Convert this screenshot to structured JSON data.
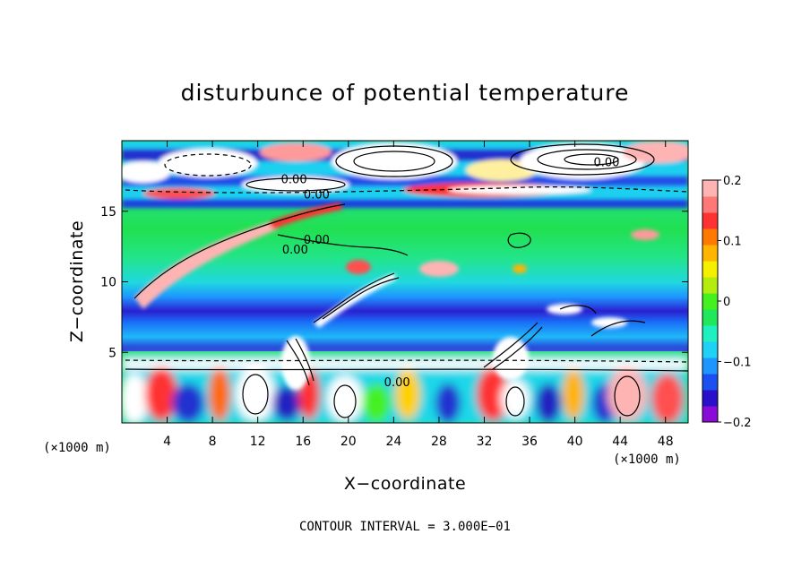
{
  "chart_data": {
    "type": "heatmap",
    "title": "disturbunce of potential temperature",
    "xlabel": "X−coordinate",
    "ylabel": "Z−coordinate",
    "xlim": [
      0,
      50
    ],
    "ylim": [
      0,
      20
    ],
    "xticks": [
      4,
      8,
      12,
      16,
      20,
      24,
      28,
      32,
      36,
      40,
      44,
      48
    ],
    "yticks": [
      5,
      10,
      15
    ],
    "x_unit": "(×1000 m)",
    "x_unit_right": "(×1000 m)",
    "colorbar": {
      "range": [
        -0.2,
        0.2
      ],
      "tick_values": [
        0.2,
        0.1,
        0,
        -0.1,
        -0.2
      ],
      "tick_labels": [
        "0.2",
        "0.1",
        "0",
        "−0.1",
        "−0.2"
      ],
      "colors": [
        "#8a0bd8",
        "#2a10c8",
        "#1a50f0",
        "#1e96ff",
        "#1fd2f5",
        "#20f0c0",
        "#21e85a",
        "#45f020",
        "#b4ec10",
        "#f5f000",
        "#ffb400",
        "#ff7800",
        "#ff3232",
        "#ff7878",
        "#ffb4b4"
      ]
    },
    "footer": "CONTOUR INTERVAL = 3.000E−01",
    "contour_labels": [
      {
        "text": "0.00",
        "x": 15.2,
        "z": 17.0
      },
      {
        "text": "0.00",
        "x": 17.2,
        "z": 15.9
      },
      {
        "text": "0.00",
        "x": 17.2,
        "z": 12.7
      },
      {
        "text": "0.00",
        "x": 15.3,
        "z": 12.0
      },
      {
        "text": "0.00",
        "x": 42.8,
        "z": 18.2
      },
      {
        "text": "0.00",
        "x": 24.3,
        "z": 2.6
      }
    ]
  }
}
